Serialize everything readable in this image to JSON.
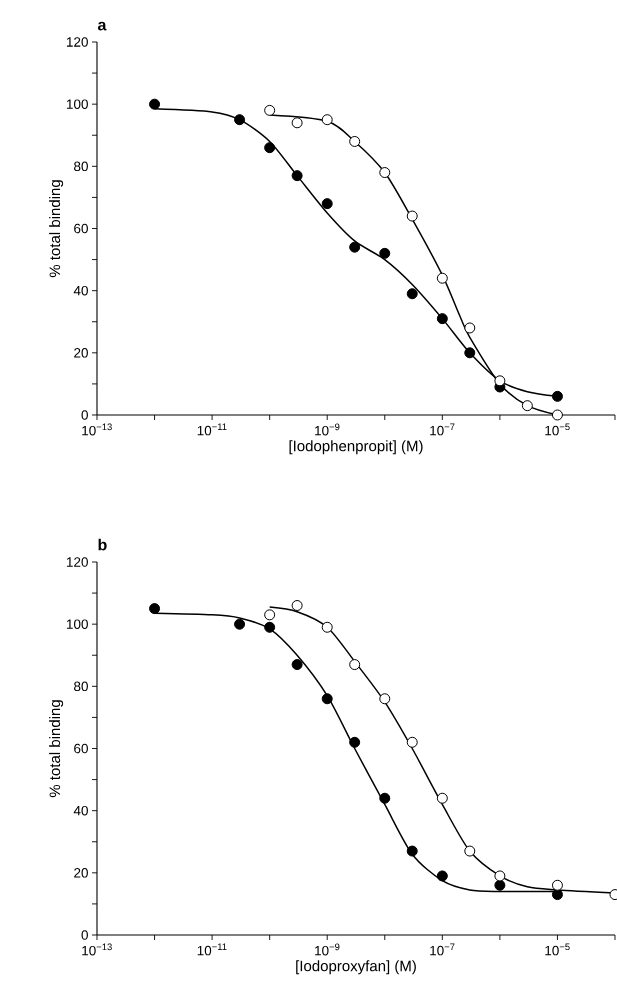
{
  "chart_data": [
    {
      "type": "scatter",
      "title": "a",
      "xlabel": "[Iodophenpropit] (M)",
      "ylabel": "% total binding",
      "log": "x",
      "xlim": [
        1e-13,
        0.0001
      ],
      "ylim": [
        0,
        120
      ],
      "xticks": [
        {
          "value": 1e-13,
          "label": "10$^{−13}$"
        },
        {
          "value": 1e-12,
          "label": null
        },
        {
          "value": 1e-11,
          "label": "10$^{−11}$"
        },
        {
          "value": 1e-10,
          "label": null
        },
        {
          "value": 1e-09,
          "label": "10$^{−9}$"
        },
        {
          "value": 1e-08,
          "label": null
        },
        {
          "value": 1e-07,
          "label": "10$^{−7}$"
        },
        {
          "value": 1e-06,
          "label": null
        },
        {
          "value": 1e-05,
          "label": "10$^{−5}$"
        },
        {
          "value": 0.0001,
          "label": null
        }
      ],
      "yticks": [
        0,
        {
          "value": 10,
          "label": null
        },
        20,
        {
          "value": 30,
          "label": null
        },
        40,
        {
          "value": 50,
          "label": null
        },
        60,
        {
          "value": 70,
          "label": null
        },
        80,
        {
          "value": 90,
          "label": null
        },
        100,
        {
          "value": 110,
          "label": null
        },
        120
      ],
      "series": [
        {
          "type": "line",
          "color": "#000000",
          "marker": "none",
          "line_style": "solid",
          "x": [
            1e-12,
            1e-11,
            3e-11,
            1e-10,
            3e-10,
            1e-09,
            3e-09,
            1e-08,
            3e-08,
            1e-07,
            3e-07,
            1e-06,
            3e-06,
            1e-05
          ],
          "values": [
            98.5,
            97.5,
            95,
            88,
            77,
            65,
            56,
            50,
            42,
            31,
            20,
            11,
            7.5,
            6
          ]
        },
        {
          "type": "line",
          "color": "#000000",
          "marker": "none",
          "line_style": "solid",
          "x": [
            1e-10,
            1e-09,
            3e-09,
            1e-08,
            3e-08,
            1e-07,
            2e-07,
            3e-07,
            1e-06,
            3e-06,
            1e-05
          ],
          "values": [
            96.5,
            94.5,
            88,
            78,
            63,
            45,
            32,
            25,
            10,
            3,
            0
          ]
        },
        {
          "color": "#000000",
          "marker": "circle",
          "x": [
            1e-12,
            3e-11,
            1e-10,
            3e-10,
            1e-09,
            3e-09,
            1e-08,
            3e-08,
            1e-07,
            3e-07,
            1e-06,
            1e-05
          ],
          "values": [
            100,
            95,
            86,
            77,
            68,
            54,
            52,
            39,
            31,
            20,
            9,
            6
          ]
        },
        {
          "color": "#ffffff",
          "marker": "circle",
          "x": [
            1e-10,
            3e-10,
            1e-09,
            3e-09,
            1e-08,
            3e-08,
            1e-07,
            3e-07,
            1e-06,
            3e-06,
            1e-05
          ],
          "values": [
            98,
            94,
            95,
            88,
            78,
            64,
            44,
            28,
            11,
            3,
            0
          ]
        }
      ]
    },
    {
      "type": "scatter",
      "title": "b",
      "xlabel": "[Iodoproxyfan] (M)",
      "ylabel": "% total binding",
      "log": "x",
      "xlim": [
        1e-13,
        0.0001
      ],
      "ylim": [
        0,
        120
      ],
      "xticks": [
        {
          "value": 1e-13,
          "label": "10$^{−13}$"
        },
        {
          "value": 1e-12,
          "label": null
        },
        {
          "value": 1e-11,
          "label": "10$^{−11}$"
        },
        {
          "value": 1e-10,
          "label": null
        },
        {
          "value": 1e-09,
          "label": "10$^{−9}$"
        },
        {
          "value": 1e-08,
          "label": null
        },
        {
          "value": 1e-07,
          "label": "10$^{−7}$"
        },
        {
          "value": 1e-06,
          "label": null
        },
        {
          "value": 1e-05,
          "label": "10$^{−5}$"
        },
        {
          "value": 0.0001,
          "label": null
        }
      ],
      "yticks": [
        0,
        {
          "value": 10,
          "label": null
        },
        20,
        {
          "value": 30,
          "label": null
        },
        40,
        {
          "value": 50,
          "label": null
        },
        60,
        {
          "value": 70,
          "label": null
        },
        80,
        {
          "value": 90,
          "label": null
        },
        100,
        {
          "value": 110,
          "label": null
        },
        120
      ],
      "series": [
        {
          "type": "line",
          "color": "#000000",
          "marker": "none",
          "line_style": "solid",
          "x": [
            1e-12,
            1e-11,
            3e-11,
            1e-10,
            3e-10,
            1e-09,
            3e-09,
            1e-08,
            3e-08,
            1e-07,
            3e-07,
            1e-06,
            1e-05
          ],
          "values": [
            103.5,
            103,
            102,
            98.5,
            90,
            77,
            60,
            42,
            26,
            17.5,
            14.5,
            14,
            14
          ]
        },
        {
          "type": "line",
          "color": "#000000",
          "marker": "none",
          "line_style": "solid",
          "x": [
            1e-10,
            3e-10,
            1e-09,
            3e-09,
            1e-08,
            3e-08,
            1e-07,
            3e-07,
            1e-06,
            3e-06,
            1e-05,
            0.0001
          ],
          "values": [
            105.5,
            104,
            99,
            88,
            75,
            60,
            42,
            27,
            19,
            15.5,
            14.5,
            13.5
          ]
        },
        {
          "color": "#000000",
          "marker": "circle",
          "x": [
            1e-12,
            3e-11,
            1e-10,
            3e-10,
            1e-09,
            3e-09,
            1e-08,
            3e-08,
            1e-07,
            1e-06,
            1e-05
          ],
          "values": [
            105,
            100,
            99,
            87,
            76,
            62,
            44,
            27,
            19,
            16,
            13
          ]
        },
        {
          "color": "#ffffff",
          "marker": "circle",
          "x": [
            1e-10,
            3e-10,
            1e-09,
            3e-09,
            1e-08,
            3e-08,
            1e-07,
            3e-07,
            1e-06,
            1e-05,
            0.0001
          ],
          "values": [
            103,
            106,
            99,
            87,
            76,
            62,
            44,
            27,
            19,
            16,
            13
          ]
        }
      ]
    }
  ]
}
